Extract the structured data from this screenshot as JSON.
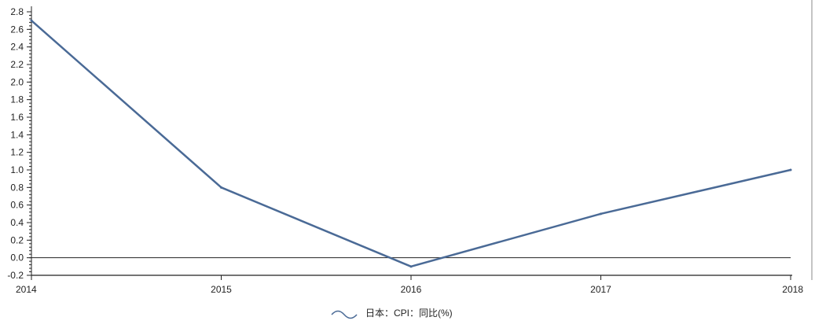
{
  "chart_data": {
    "type": "line",
    "title": "",
    "xlabel": "",
    "ylabel": "",
    "categories": [
      "2014",
      "2015",
      "2016",
      "2017",
      "2018"
    ],
    "series": [
      {
        "name": "日本：CPI：同比(%)",
        "values": [
          2.7,
          0.8,
          -0.1,
          0.5,
          1.0
        ],
        "color": "#4a6a96"
      }
    ],
    "ylim": [
      -0.2,
      2.8
    ],
    "yticks": [
      "-0.2",
      "0.0",
      "0.2",
      "0.4",
      "0.6",
      "0.8",
      "1.0",
      "1.2",
      "1.4",
      "1.6",
      "1.8",
      "2.0",
      "2.2",
      "2.4",
      "2.6",
      "2.8"
    ],
    "zero_line": true,
    "grid": false,
    "legend": "bottom-center"
  }
}
